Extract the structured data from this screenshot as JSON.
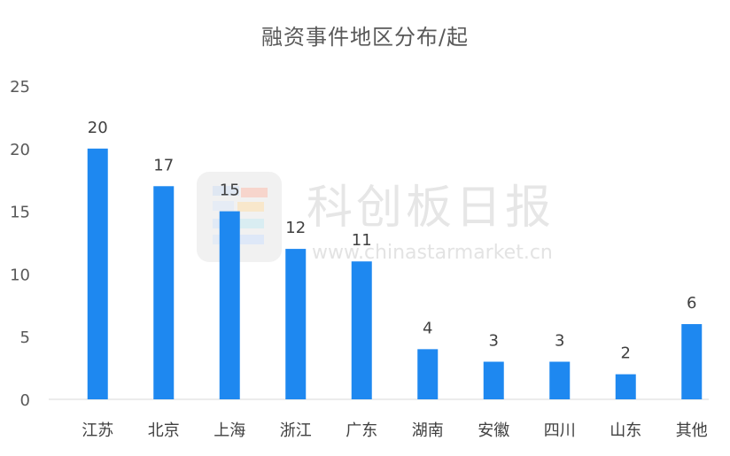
{
  "chart_data": {
    "type": "bar",
    "title": "融资事件地区分布/起",
    "categories": [
      "江苏",
      "北京",
      "上海",
      "浙江",
      "广东",
      "湖南",
      "安徽",
      "四川",
      "山东",
      "其他"
    ],
    "values": [
      20,
      17,
      15,
      12,
      11,
      4,
      3,
      3,
      2,
      6
    ],
    "ylim": [
      0,
      25
    ],
    "yticks": [
      0,
      5,
      10,
      15,
      20,
      25
    ],
    "grid": false,
    "legend": "none",
    "bar_color": "#1e88f0"
  },
  "watermark": {
    "text": "科创板日报",
    "url": "www.chinastarmarket.cn"
  }
}
